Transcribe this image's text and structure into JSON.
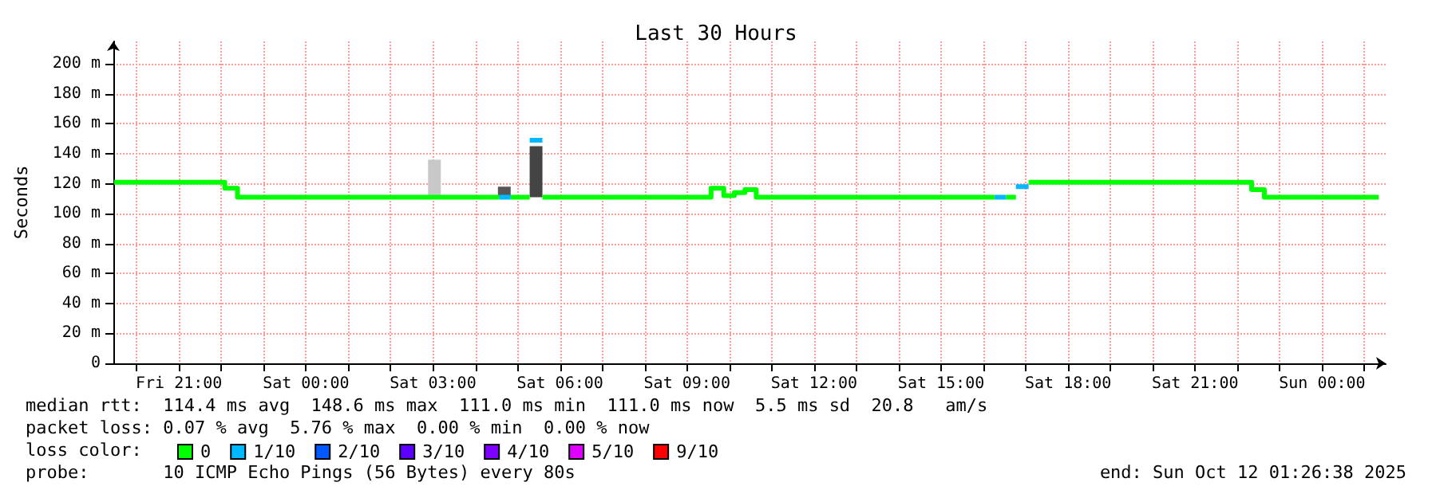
{
  "chart_data": {
    "type": "step",
    "title": "Last 30 Hours",
    "ylabel": "Seconds",
    "legend_title": "loss color:",
    "legend": "bottom left",
    "grid": true,
    "marker": "none",
    "line_style": "solid",
    "xlim": [
      "2025-10-10T19:27",
      "2025-10-12T01:30"
    ],
    "ylim": [
      0,
      215
    ],
    "xticks": [
      {
        "value": "2025-10-10T20:00",
        "label": null
      },
      {
        "value": "2025-10-10T21:00",
        "label": "Fri 21:00"
      },
      {
        "value": "2025-10-10T22:00",
        "label": null
      },
      {
        "value": "2025-10-10T23:00",
        "label": null
      },
      {
        "value": "2025-10-11T00:00",
        "label": "Sat 00:00"
      },
      {
        "value": "2025-10-11T01:00",
        "label": null
      },
      {
        "value": "2025-10-11T02:00",
        "label": null
      },
      {
        "value": "2025-10-11T03:00",
        "label": "Sat 03:00"
      },
      {
        "value": "2025-10-11T04:00",
        "label": null
      },
      {
        "value": "2025-10-11T05:00",
        "label": null
      },
      {
        "value": "2025-10-11T06:00",
        "label": "Sat 06:00"
      },
      {
        "value": "2025-10-11T07:00",
        "label": null
      },
      {
        "value": "2025-10-11T08:00",
        "label": null
      },
      {
        "value": "2025-10-11T09:00",
        "label": "Sat 09:00"
      },
      {
        "value": "2025-10-11T10:00",
        "label": null
      },
      {
        "value": "2025-10-11T11:00",
        "label": null
      },
      {
        "value": "2025-10-11T12:00",
        "label": "Sat 12:00"
      },
      {
        "value": "2025-10-11T13:00",
        "label": null
      },
      {
        "value": "2025-10-11T14:00",
        "label": null
      },
      {
        "value": "2025-10-11T15:00",
        "label": "Sat 15:00"
      },
      {
        "value": "2025-10-11T16:00",
        "label": null
      },
      {
        "value": "2025-10-11T17:00",
        "label": null
      },
      {
        "value": "2025-10-11T18:00",
        "label": "Sat 18:00"
      },
      {
        "value": "2025-10-11T19:00",
        "label": null
      },
      {
        "value": "2025-10-11T20:00",
        "label": null
      },
      {
        "value": "2025-10-11T21:00",
        "label": "Sat 21:00"
      },
      {
        "value": "2025-10-11T22:00",
        "label": null
      },
      {
        "value": "2025-10-11T23:00",
        "label": null
      },
      {
        "value": "2025-10-12T00:00",
        "label": "Sun 00:00"
      },
      {
        "value": "2025-10-12T01:00",
        "label": null
      }
    ],
    "yticks": [
      0,
      {
        "value": 20,
        "label": "20 m"
      },
      {
        "value": 40,
        "label": "40 m"
      },
      {
        "value": 60,
        "label": "60 m"
      },
      {
        "value": 80,
        "label": "80 m"
      },
      {
        "value": 100,
        "label": "100 m"
      },
      {
        "value": 120,
        "label": "120 m"
      },
      {
        "value": 140,
        "label": "140 m"
      },
      {
        "value": 160,
        "label": "160 m"
      },
      {
        "value": 180,
        "label": "180 m"
      },
      {
        "value": 200,
        "label": "200 m"
      }
    ],
    "series": [
      {
        "type": "bar",
        "colors": [
          "#c8c8c8",
          "#555555",
          "#444444"
        ],
        "x": [
          "2025-10-11T03:02",
          "2025-10-11T04:41",
          "2025-10-11T05:26"
        ],
        "base": [
          111,
          111,
          111
        ],
        "values": [
          25,
          7,
          34
        ]
      },
      {
        "name": "0",
        "color": "#00ff00",
        "x": [
          "2025-10-10T19:28",
          "2025-10-10T22:05",
          "2025-10-10T22:23",
          "2025-10-11T04:34",
          "2025-10-11T04:35",
          "2025-10-11T04:50",
          "2025-10-11T05:17",
          "2025-10-11T05:18",
          "2025-10-11T05:35",
          "2025-10-11T09:34",
          "2025-10-11T09:52",
          "2025-10-11T10:07",
          "2025-10-11T10:22",
          "2025-10-11T10:38",
          "2025-10-11T16:16",
          "2025-10-11T16:17",
          "2025-10-11T16:32",
          "2025-10-11T16:46",
          "2025-10-11T16:47",
          "2025-10-11T17:04",
          "2025-10-11T22:20",
          "2025-10-11T22:38",
          "2025-10-12T01:20"
        ],
        "values": [
          121,
          117,
          111,
          111,
          null,
          111,
          111,
          null,
          111,
          117,
          112,
          114,
          116,
          111,
          111,
          null,
          111,
          111,
          null,
          121,
          116,
          111,
          111
        ]
      },
      {
        "name": "1/10",
        "color": "#00b8ff",
        "x": [
          "2025-10-11T04:34",
          "2025-10-11T04:50",
          "2025-10-11T04:51",
          "2025-10-11T05:17",
          "2025-10-11T05:35",
          "2025-10-11T05:36",
          "2025-10-11T16:16",
          "2025-10-11T16:32",
          "2025-10-11T16:33",
          "2025-10-11T16:46",
          "2025-10-11T17:04"
        ],
        "values": [
          111,
          111,
          null,
          149,
          149,
          null,
          111,
          111,
          null,
          118,
          118
        ]
      },
      {
        "name": "2/10",
        "color": "#0059ff"
      },
      {
        "name": "3/10",
        "color": "#5e00ff"
      },
      {
        "name": "4/10",
        "color": "#7e00ff"
      },
      {
        "name": "5/10",
        "color": "#dd00ff"
      },
      {
        "name": "9/10",
        "color": "#ff0000"
      }
    ],
    "annotations": [
      "median rtt:  114.4 ms avg  148.6 ms max  111.0 ms min  111.0 ms now  5.5 ms sd  20.8   am/s",
      "packet loss: 0.07 % avg  5.76 % max  0.00 % min  0.00 % now",
      "probe:       10 ICMP Echo Pings (56 Bytes) every 80s",
      "end: Sun Oct 12 01:26:38 2025"
    ]
  }
}
